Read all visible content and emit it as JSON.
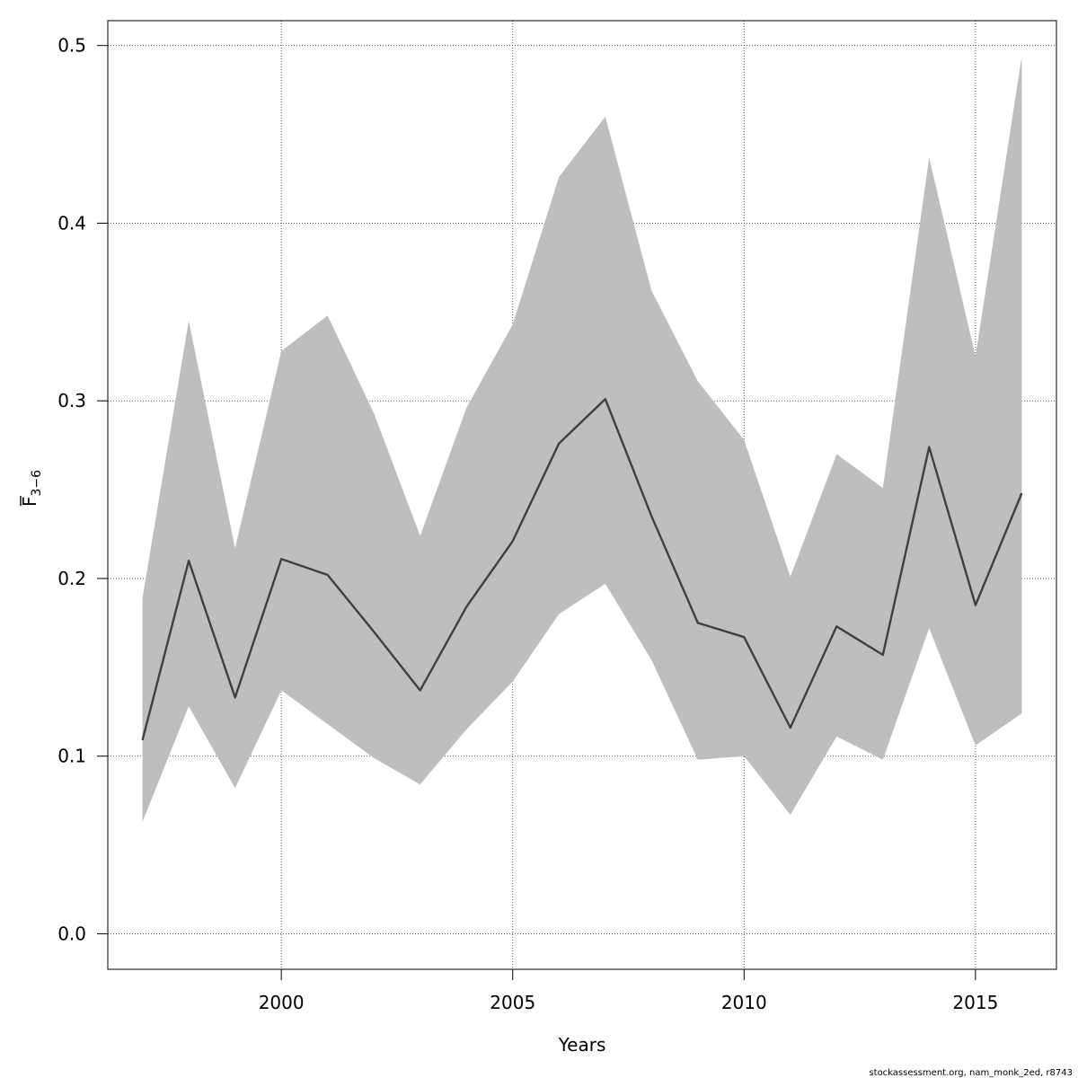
{
  "chart_data": {
    "type": "line",
    "xlabel": "Years",
    "ylabel": "F",
    "ylabel_subscript": "3−6",
    "xlim": [
      1996.25,
      2016.75
    ],
    "ylim": [
      -0.02,
      0.514
    ],
    "x_ticks": [
      2000,
      2005,
      2010,
      2015
    ],
    "y_ticks": [
      0.0,
      0.1,
      0.2,
      0.3,
      0.4,
      0.5
    ],
    "y_tick_labels": [
      "0.0",
      "0.1",
      "0.2",
      "0.3",
      "0.4",
      "0.5"
    ],
    "grid": true,
    "x": [
      1997,
      1998,
      1999,
      2000,
      2001,
      2002,
      2003,
      2004,
      2005,
      2006,
      2007,
      2008,
      2009,
      2010,
      2011,
      2012,
      2013,
      2014,
      2015,
      2016
    ],
    "series": [
      {
        "values": [
          0.109,
          0.21,
          0.133,
          0.211,
          0.202,
          0.17,
          0.137,
          0.184,
          0.221,
          0.276,
          0.301,
          0.235,
          0.175,
          0.167,
          0.116,
          0.173,
          0.157,
          0.274,
          0.185,
          0.248
        ],
        "lower": [
          0.063,
          0.128,
          0.082,
          0.137,
          0.118,
          0.099,
          0.084,
          0.115,
          0.142,
          0.18,
          0.197,
          0.154,
          0.098,
          0.1,
          0.067,
          0.111,
          0.098,
          0.172,
          0.106,
          0.124
        ],
        "upper": [
          0.189,
          0.345,
          0.217,
          0.328,
          0.348,
          0.293,
          0.224,
          0.296,
          0.343,
          0.426,
          0.46,
          0.362,
          0.311,
          0.278,
          0.201,
          0.27,
          0.251,
          0.437,
          0.325,
          0.494
        ]
      }
    ],
    "colors": {
      "band": "#bebebe",
      "line": "#404040",
      "grid": "#555555",
      "axis": "#000000"
    }
  },
  "footer": {
    "text": "stockassessment.org, nam_monk_2ed, r8743"
  }
}
